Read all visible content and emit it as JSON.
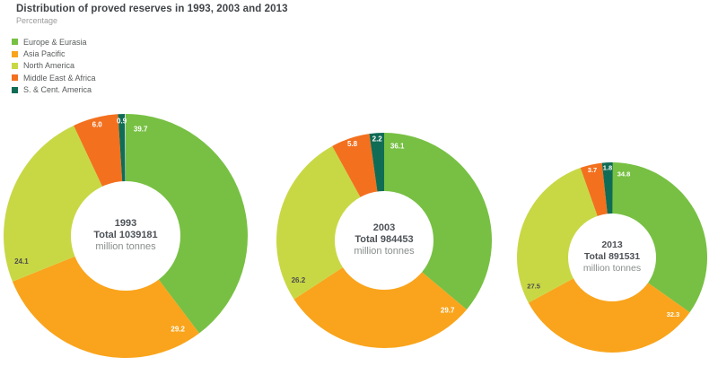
{
  "header": {
    "title": "Distribution of proved reserves in 1993, 2003 and 2013",
    "subtitle": "Percentage"
  },
  "legend": {
    "items": [
      {
        "label": "Europe & Eurasia",
        "color": "#77C043"
      },
      {
        "label": "Asia Pacific",
        "color": "#F9A41C"
      },
      {
        "label": "North America",
        "color": "#C8D845"
      },
      {
        "label": "Middle East & Africa",
        "color": "#F3701E"
      },
      {
        "label": "S. & Cent. America",
        "color": "#106C55"
      }
    ]
  },
  "chart_data": {
    "type": "pie",
    "variant": "donut",
    "unit": "percent share",
    "start_angle": "12 o'clock, clockwise",
    "categories": [
      "Europe & Eurasia",
      "Asia Pacific",
      "North America",
      "Middle East & Africa",
      "S. & Cent. America"
    ],
    "series_colors": [
      "#77C043",
      "#F9A41C",
      "#C8D845",
      "#F3701E",
      "#106C55"
    ],
    "value_label_colors": [
      "#FFFFFF",
      "#FFFFFF",
      "#4D4D4D",
      "#FFFFFF",
      "#FFFFFF"
    ],
    "charts": [
      {
        "year": "1993",
        "center_line1": "1993",
        "center_line2": "Total 1039181",
        "center_line3": "million tonnes",
        "total_million_tonnes": 1039181,
        "values": [
          39.7,
          29.2,
          24.1,
          6.0,
          0.9
        ]
      },
      {
        "year": "2003",
        "center_line1": "2003",
        "center_line2": "Total 984453",
        "center_line3": "million tonnes",
        "total_million_tonnes": 984453,
        "values": [
          36.1,
          29.7,
          26.2,
          5.8,
          2.2
        ]
      },
      {
        "year": "2013",
        "center_line1": "2013",
        "center_line2": "Total 891531",
        "center_line3": "million tonnes",
        "total_million_tonnes": 891531,
        "values": [
          34.8,
          32.3,
          27.5,
          3.7,
          1.8
        ]
      }
    ]
  }
}
